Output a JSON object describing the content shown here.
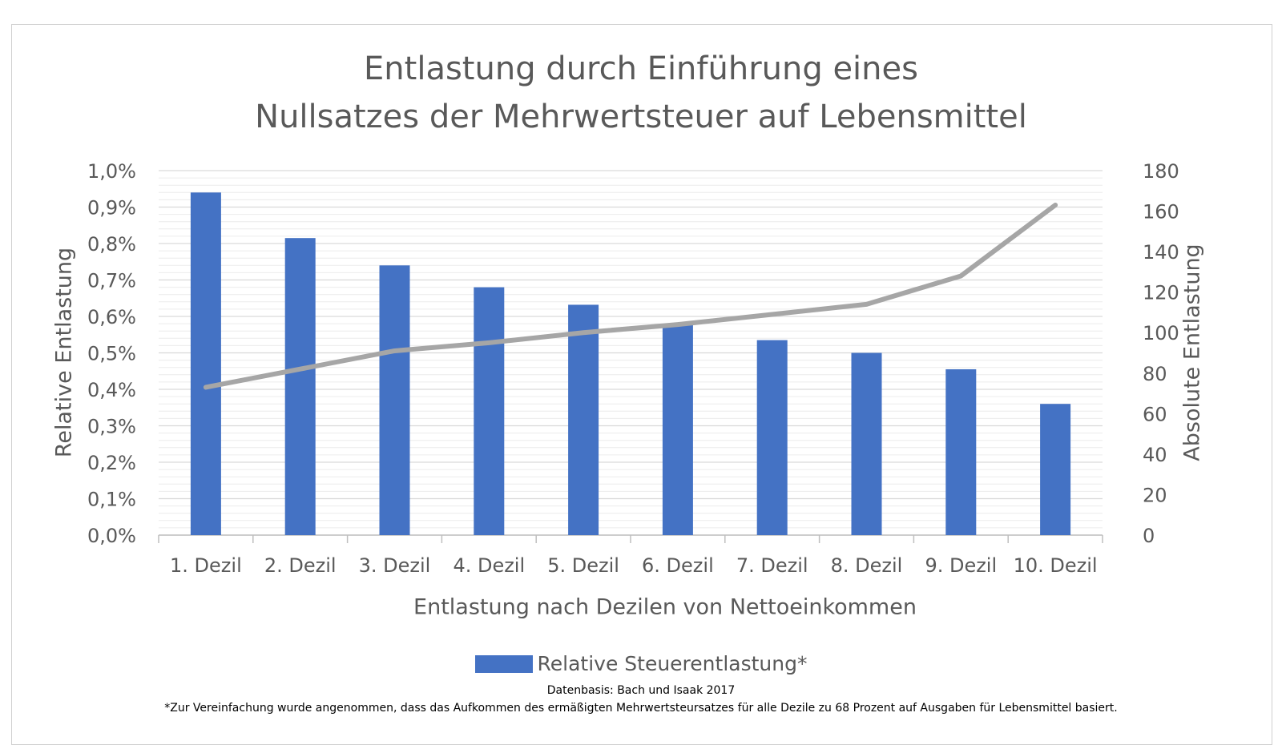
{
  "chart_data": {
    "type": "bar",
    "title_line1": "Entlastung durch Einführung eines",
    "title_line2": "Nullsatzes der Mehrwertsteuer auf Lebensmittel",
    "xlabel": "Entlastung nach Dezilen von Nettoeinkommen",
    "ylabel": "Relative Entlastung",
    "y2label": "Absolute Entlastung",
    "categories": [
      "1. Dezil",
      "2. Dezil",
      "3. Dezil",
      "4. Dezil",
      "5. Dezil",
      "6. Dezil",
      "7. Dezil",
      "8. Dezil",
      "9. Dezil",
      "10. Dezil"
    ],
    "yticks": [
      "0,0%",
      "0,1%",
      "0,2%",
      "0,3%",
      "0,4%",
      "0,5%",
      "0,6%",
      "0,7%",
      "0,8%",
      "0,9%",
      "1,0%"
    ],
    "y2ticks": [
      "0",
      "20",
      "40",
      "60",
      "80",
      "100",
      "120",
      "140",
      "160",
      "180"
    ],
    "ylim": [
      0,
      1.0
    ],
    "y2lim": [
      0,
      180
    ],
    "series": [
      {
        "name": "Relative Steuerentlastung*",
        "type": "bar",
        "axis": "left",
        "color": "#4472c4",
        "values": [
          0.94,
          0.815,
          0.74,
          0.68,
          0.632,
          0.58,
          0.535,
          0.5,
          0.455,
          0.36
        ]
      },
      {
        "type": "line",
        "axis": "right",
        "color": "#a6a6a6",
        "values": [
          73,
          82,
          91,
          95,
          100,
          104,
          109,
          114,
          128,
          163
        ]
      }
    ],
    "grid": true,
    "legend": "bottom"
  },
  "notes": {
    "source": "Datenbasis: Bach und Isaak 2017",
    "footnote": "*Zur Vereinfachung wurde angenommen, dass das Aufkommen des ermäßigten Mehrwertsteursatzes für alle Dezile zu 68 Prozent auf Ausgaben für Lebensmittel basiert."
  }
}
